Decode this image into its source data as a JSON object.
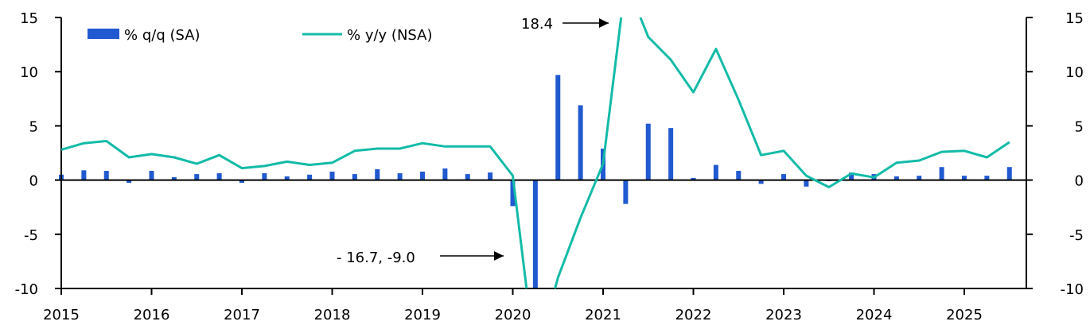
{
  "chart_data": {
    "type": "bar+line",
    "title": "",
    "xlabel": "",
    "ylabel": "",
    "ylim": [
      -10,
      15
    ],
    "y_ticks": [
      "15",
      "10",
      "5",
      "0",
      "-5",
      "-10"
    ],
    "x_tick_labels": [
      "2015",
      "2016",
      "2017",
      "2018",
      "2019",
      "2020",
      "2021",
      "2022",
      "2023",
      "2024",
      "2025"
    ],
    "categories": [
      "2015Q1",
      "2015Q2",
      "2015Q3",
      "2015Q4",
      "2016Q1",
      "2016Q2",
      "2016Q3",
      "2016Q4",
      "2017Q1",
      "2017Q2",
      "2017Q3",
      "2017Q4",
      "2018Q1",
      "2018Q2",
      "2018Q3",
      "2018Q4",
      "2019Q1",
      "2019Q2",
      "2019Q3",
      "2019Q4",
      "2020Q1",
      "2020Q2",
      "2020Q3",
      "2020Q4",
      "2021Q1",
      "2021Q2",
      "2021Q3",
      "2021Q4",
      "2022Q1",
      "2022Q2",
      "2022Q3",
      "2022Q4",
      "2023Q1",
      "2023Q2",
      "2023Q3",
      "2023Q4",
      "2024Q1",
      "2024Q2",
      "2024Q3",
      "2024Q4",
      "2025Q1",
      "2025Q2",
      "2025Q3"
    ],
    "series": [
      {
        "name": "% q/q (SA)",
        "type": "bar",
        "color": "#2159D0",
        "values": [
          0.5,
          0.9,
          0.85,
          -0.25,
          0.85,
          0.27,
          0.55,
          0.63,
          -0.25,
          0.63,
          0.34,
          0.5,
          0.78,
          0.55,
          1.0,
          0.63,
          0.78,
          1.07,
          0.55,
          0.7,
          -2.4,
          -12,
          9.7,
          6.9,
          2.9,
          -2.2,
          5.2,
          4.8,
          0.2,
          1.4,
          0.85,
          -0.35,
          0.55,
          -0.6,
          -0.1,
          0.7,
          0.55,
          0.34,
          0.4,
          1.2,
          0.4,
          0.4,
          1.2
        ]
      },
      {
        "name": "% y/y (NSA)",
        "type": "line",
        "color": "#13BBA7",
        "values": [
          2.8,
          3.4,
          3.6,
          2.1,
          2.4,
          2.1,
          1.5,
          2.3,
          1.1,
          1.3,
          1.7,
          1.4,
          1.6,
          2.7,
          2.9,
          2.9,
          3.4,
          3.1,
          3.1,
          3.1,
          0.4,
          -16.7,
          -9.0,
          -3.5,
          1.5,
          18.4,
          13.2,
          11.1,
          8.1,
          12.1,
          7.4,
          2.3,
          2.7,
          0.4,
          -0.65,
          0.6,
          0.25,
          1.6,
          1.8,
          2.6,
          2.7,
          2.1,
          3.5
        ]
      }
    ],
    "legend_position": "top-left",
    "annotations": [
      {
        "text": "18.4",
        "points_to": "2021Q2"
      },
      {
        "text": "- 16.7, -9.0",
        "points_to": "2020Q2-2020Q3"
      }
    ],
    "grid": false
  }
}
